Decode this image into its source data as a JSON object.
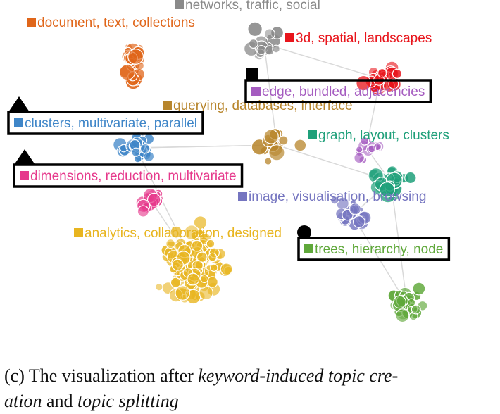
{
  "topics": [
    {
      "id": "networks",
      "label": "networks, traffic, social",
      "color": "#8a8a8a"
    },
    {
      "id": "document",
      "label": "document, text, collections",
      "color": "#e0661a"
    },
    {
      "id": "spatial",
      "label": "3d, spatial, landscapes",
      "color": "#e8151c"
    },
    {
      "id": "edge",
      "label": "edge, bundled, adjacencies",
      "color": "#a55cc0"
    },
    {
      "id": "querying",
      "label": "querying, databases, interface",
      "color": "#b8862d"
    },
    {
      "id": "clusters",
      "label": "clusters, multivariate, parallel",
      "color": "#3f86c8"
    },
    {
      "id": "graph",
      "label": "graph, layout, clusters",
      "color": "#1fa07a"
    },
    {
      "id": "dimensions",
      "label": "dimensions, reduction, multivariate",
      "color": "#e6398c"
    },
    {
      "id": "image",
      "label": "image, visualisation, browsing",
      "color": "#7575c0"
    },
    {
      "id": "analytics",
      "label": "analytics, collaboration, designed",
      "color": "#e8b520"
    },
    {
      "id": "trees",
      "label": "trees, hierarchy, node",
      "color": "#5fa83a"
    }
  ],
  "highlighted_topics": [
    "edge",
    "clusters",
    "dimensions",
    "trees"
  ],
  "markers": {
    "edge": "square",
    "clusters": "triangle",
    "dimensions": "triangle",
    "trees": "circle"
  },
  "caption": {
    "part1": "(c) The visualization after ",
    "italic1": "keyword-induced topic cre-",
    "italic2": "ation",
    "part2": " and ",
    "italic3": "topic splitting"
  }
}
